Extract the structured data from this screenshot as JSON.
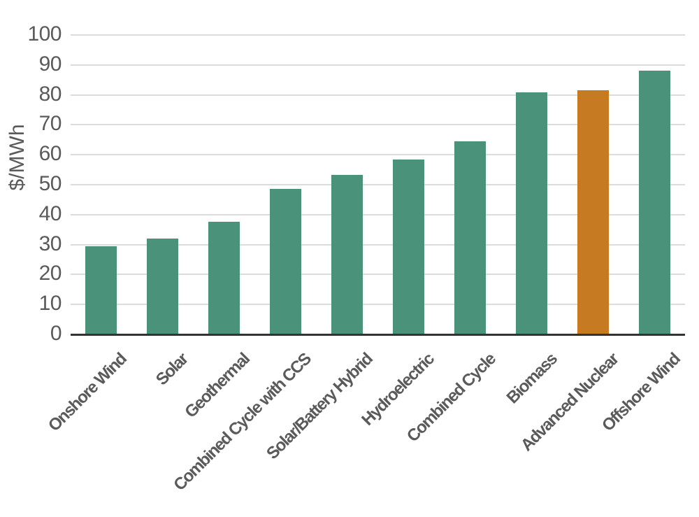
{
  "chart_data": {
    "type": "bar",
    "title": "",
    "xlabel": "",
    "ylabel": "$/MWh",
    "ylim": [
      0,
      100
    ],
    "yticks": [
      0,
      10,
      20,
      30,
      40,
      50,
      60,
      70,
      80,
      90,
      100
    ],
    "grid": true,
    "legend": null,
    "categories": [
      "Onshore Wind",
      "Solar",
      "Geothermal",
      "Combined Cycle with CCS",
      "Solar/Battery Hybrid",
      "Hydroelectric",
      "Combined Cycle",
      "Biomass",
      "Advanced Nuclear",
      "Offshore Wind"
    ],
    "values": [
      29.5,
      31.9,
      37.6,
      48.6,
      53.3,
      58.4,
      64.5,
      80.8,
      81.5,
      88.1
    ],
    "colors": [
      "#4a9279",
      "#4a9279",
      "#4a9279",
      "#4a9279",
      "#4a9279",
      "#4a9279",
      "#4a9279",
      "#4a9279",
      "#c67b23",
      "#4a9279"
    ],
    "highlight": "Advanced Nuclear"
  },
  "colors": {
    "default_bar": "#4a9279",
    "highlight_bar": "#c67b23",
    "text": "#5a5a5a",
    "grid": "#dcdcdc",
    "axis": "#333333"
  }
}
